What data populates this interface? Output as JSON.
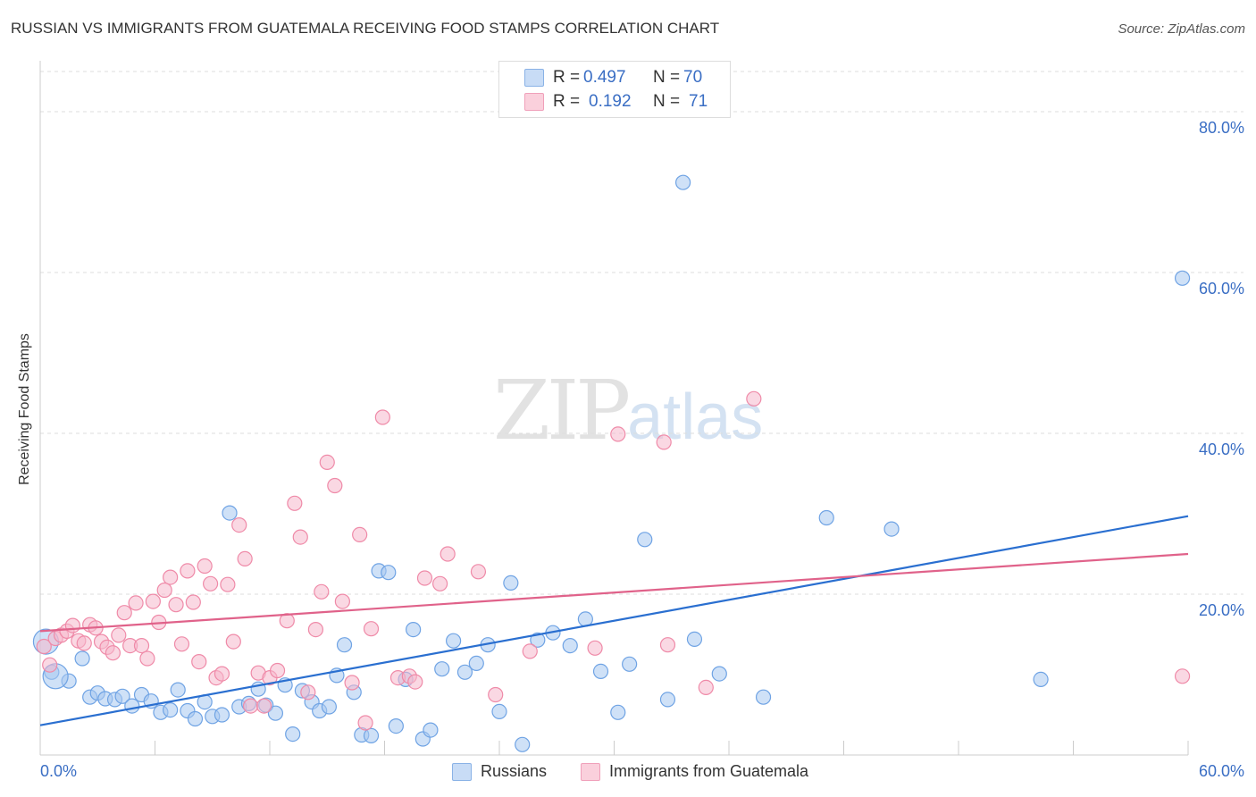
{
  "header": {
    "title": "RUSSIAN VS IMMIGRANTS FROM GUATEMALA RECEIVING FOOD STAMPS CORRELATION CHART",
    "source": "Source: ZipAtlas.com"
  },
  "watermark": {
    "zip": "ZIP",
    "atlas": "atlas"
  },
  "legend_top": [
    {
      "r_label": "R =",
      "r_value": "0.497",
      "n_label": "N =",
      "n_value": "70",
      "color": "#a8c8f0"
    },
    {
      "r_label": "R =",
      "r_value": "0.192",
      "n_label": "N =",
      "n_value": "71",
      "color": "#f6b8cc"
    }
  ],
  "legend_bottom": [
    {
      "label": "Russians",
      "color": "#a8c8f0"
    },
    {
      "label": "Immigrants from Guatemala",
      "color": "#f6b8cc"
    }
  ],
  "chart_data": {
    "type": "scatter",
    "title": "RUSSIAN VS IMMIGRANTS FROM GUATEMALA RECEIVING FOOD STAMPS CORRELATION CHART",
    "xlabel": "",
    "ylabel": "Receiving Food Stamps",
    "xlim": [
      0,
      60
    ],
    "ylim": [
      0,
      85
    ],
    "x_tick_labels": [
      "0.0%",
      "60.0%"
    ],
    "y_ticks": [
      20,
      40,
      60,
      80
    ],
    "y_tick_labels": [
      "20.0%",
      "40.0%",
      "60.0%",
      "80.0%"
    ],
    "grid": true,
    "legend_position": "top-center",
    "series": [
      {
        "name": "Russians",
        "color": "#6fa3e4",
        "fill": "#a8c8f0",
        "trend_color": "#2a6fd0",
        "trend": [
          [
            0,
            3.7
          ],
          [
            60,
            29.7
          ]
        ],
        "points": [
          [
            0.3,
            14.1
          ],
          [
            0.6,
            10.3
          ],
          [
            1.5,
            9.2
          ],
          [
            2.2,
            12.0
          ],
          [
            2.6,
            7.2
          ],
          [
            3.0,
            7.7
          ],
          [
            3.4,
            7.0
          ],
          [
            3.9,
            6.9
          ],
          [
            4.3,
            7.3
          ],
          [
            4.8,
            6.1
          ],
          [
            5.3,
            7.5
          ],
          [
            5.8,
            6.7
          ],
          [
            6.3,
            5.3
          ],
          [
            6.8,
            5.6
          ],
          [
            7.2,
            8.1
          ],
          [
            7.7,
            5.5
          ],
          [
            8.1,
            4.5
          ],
          [
            8.6,
            6.6
          ],
          [
            9.0,
            4.8
          ],
          [
            9.5,
            5.0
          ],
          [
            9.9,
            30.1
          ],
          [
            10.4,
            6.0
          ],
          [
            10.9,
            6.4
          ],
          [
            11.4,
            8.2
          ],
          [
            11.8,
            6.2
          ],
          [
            12.3,
            5.2
          ],
          [
            12.8,
            8.7
          ],
          [
            13.2,
            2.6
          ],
          [
            13.7,
            8.0
          ],
          [
            14.2,
            6.6
          ],
          [
            14.6,
            5.5
          ],
          [
            15.1,
            6.0
          ],
          [
            15.5,
            9.9
          ],
          [
            15.9,
            13.7
          ],
          [
            16.4,
            7.8
          ],
          [
            16.8,
            2.5
          ],
          [
            17.3,
            2.4
          ],
          [
            17.7,
            22.9
          ],
          [
            18.2,
            22.7
          ],
          [
            18.6,
            3.6
          ],
          [
            19.1,
            9.4
          ],
          [
            19.5,
            15.6
          ],
          [
            20.0,
            2.0
          ],
          [
            20.4,
            3.1
          ],
          [
            21.0,
            10.7
          ],
          [
            21.6,
            14.2
          ],
          [
            22.2,
            10.3
          ],
          [
            22.8,
            11.4
          ],
          [
            23.4,
            13.7
          ],
          [
            24.0,
            5.4
          ],
          [
            24.6,
            21.4
          ],
          [
            25.2,
            1.3
          ],
          [
            26.0,
            14.3
          ],
          [
            26.8,
            15.2
          ],
          [
            27.7,
            13.6
          ],
          [
            28.5,
            16.9
          ],
          [
            29.3,
            10.4
          ],
          [
            30.2,
            5.3
          ],
          [
            30.8,
            11.3
          ],
          [
            31.6,
            26.8
          ],
          [
            32.8,
            6.9
          ],
          [
            33.6,
            71.2
          ],
          [
            34.2,
            14.4
          ],
          [
            35.5,
            10.1
          ],
          [
            37.8,
            7.2
          ],
          [
            41.1,
            29.5
          ],
          [
            44.5,
            28.1
          ],
          [
            52.3,
            9.4
          ],
          [
            59.7,
            59.3
          ],
          [
            0.8,
            9.8
          ]
        ]
      },
      {
        "name": "Immigrants from Guatemala",
        "color": "#ef8aa8",
        "fill": "#f6b8cc",
        "trend_color": "#e0628a",
        "trend": [
          [
            0,
            15.4
          ],
          [
            60,
            25.0
          ]
        ],
        "points": [
          [
            0.2,
            13.5
          ],
          [
            0.5,
            11.2
          ],
          [
            0.8,
            14.5
          ],
          [
            1.1,
            14.9
          ],
          [
            1.4,
            15.4
          ],
          [
            1.7,
            16.1
          ],
          [
            2.0,
            14.2
          ],
          [
            2.3,
            13.9
          ],
          [
            2.6,
            16.2
          ],
          [
            2.9,
            15.8
          ],
          [
            3.2,
            14.1
          ],
          [
            3.5,
            13.4
          ],
          [
            3.8,
            12.7
          ],
          [
            4.1,
            14.9
          ],
          [
            4.4,
            17.7
          ],
          [
            4.7,
            13.6
          ],
          [
            5.0,
            18.9
          ],
          [
            5.3,
            13.6
          ],
          [
            5.6,
            12.0
          ],
          [
            5.9,
            19.1
          ],
          [
            6.2,
            16.5
          ],
          [
            6.5,
            20.5
          ],
          [
            6.8,
            22.1
          ],
          [
            7.1,
            18.7
          ],
          [
            7.4,
            13.8
          ],
          [
            7.7,
            22.9
          ],
          [
            8.0,
            19.0
          ],
          [
            8.3,
            11.6
          ],
          [
            8.6,
            23.5
          ],
          [
            8.9,
            21.3
          ],
          [
            9.2,
            9.6
          ],
          [
            9.5,
            10.1
          ],
          [
            9.8,
            21.2
          ],
          [
            10.1,
            14.1
          ],
          [
            10.4,
            28.6
          ],
          [
            10.7,
            24.4
          ],
          [
            11.0,
            6.1
          ],
          [
            11.4,
            10.2
          ],
          [
            11.7,
            6.1
          ],
          [
            12.0,
            9.6
          ],
          [
            12.4,
            10.5
          ],
          [
            12.9,
            16.7
          ],
          [
            13.3,
            31.3
          ],
          [
            13.6,
            27.1
          ],
          [
            14.0,
            7.8
          ],
          [
            14.4,
            15.6
          ],
          [
            14.7,
            20.3
          ],
          [
            15.0,
            36.4
          ],
          [
            15.4,
            33.5
          ],
          [
            15.8,
            19.1
          ],
          [
            16.3,
            9.0
          ],
          [
            16.7,
            27.4
          ],
          [
            17.0,
            4.0
          ],
          [
            17.3,
            15.7
          ],
          [
            17.9,
            42.0
          ],
          [
            18.7,
            9.6
          ],
          [
            19.3,
            9.8
          ],
          [
            19.6,
            9.1
          ],
          [
            20.1,
            22.0
          ],
          [
            20.9,
            21.3
          ],
          [
            21.3,
            25.0
          ],
          [
            22.9,
            22.8
          ],
          [
            23.8,
            7.5
          ],
          [
            25.6,
            12.9
          ],
          [
            29.0,
            13.3
          ],
          [
            30.2,
            39.9
          ],
          [
            32.6,
            38.9
          ],
          [
            34.8,
            8.4
          ],
          [
            32.8,
            13.7
          ],
          [
            37.3,
            44.3
          ],
          [
            59.7,
            9.8
          ]
        ]
      }
    ]
  }
}
